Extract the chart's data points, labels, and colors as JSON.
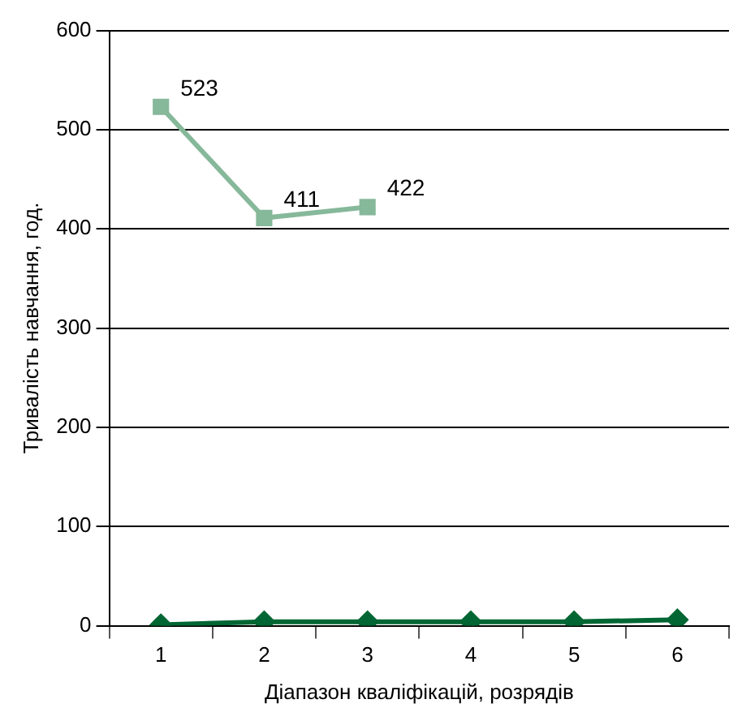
{
  "chart_data": {
    "type": "line",
    "xlabel": "Діапазон кваліфікацій, розрядів",
    "ylabel": "Тривалість навчання, год.",
    "categories": [
      "1",
      "2",
      "3",
      "4",
      "5",
      "6"
    ],
    "ylim": [
      0,
      600
    ],
    "yticks": [
      0,
      100,
      200,
      300,
      400,
      500,
      600
    ],
    "grid": "y",
    "legend": false,
    "line_style": "solid",
    "series": [
      {
        "color": "#86b89a",
        "marker": "square",
        "values": [
          523,
          411,
          422,
          null,
          null,
          null
        ],
        "value_labels": [
          "523",
          "411",
          "422",
          null,
          null,
          null
        ]
      },
      {
        "color": "#006633",
        "marker": "diamond",
        "values": [
          1,
          4,
          4,
          4,
          4,
          6
        ]
      }
    ]
  }
}
